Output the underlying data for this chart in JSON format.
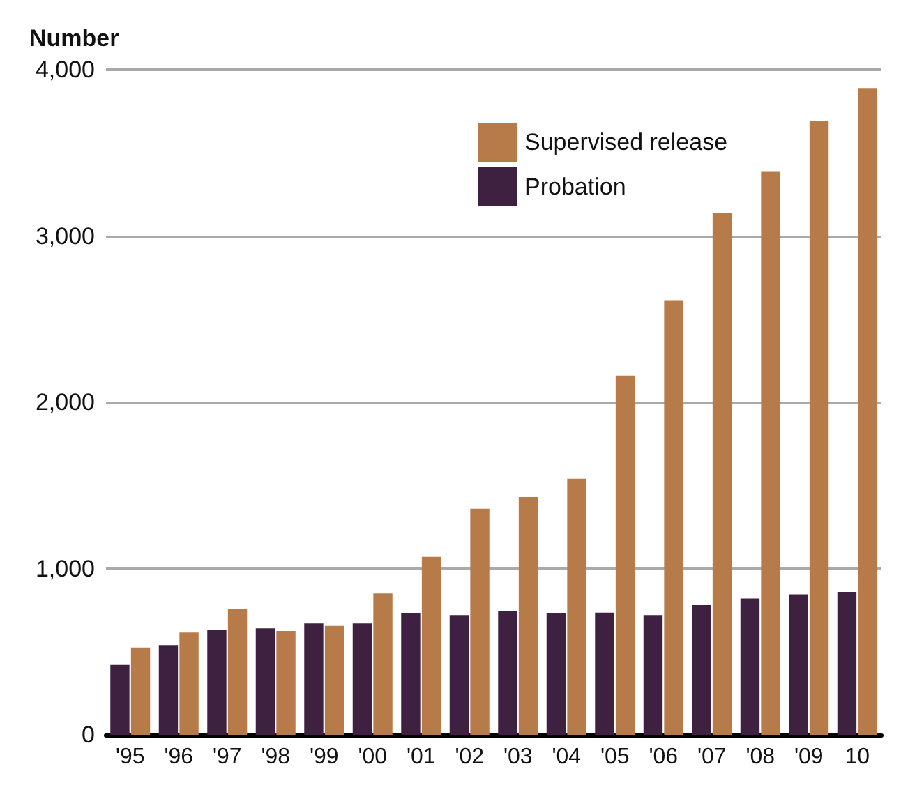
{
  "chart_data": {
    "type": "bar",
    "ylabel": "Number",
    "categories": [
      "'95",
      "'96",
      "'97",
      "'98",
      "'99",
      "'00",
      "'01",
      "'02",
      "'03",
      "'04",
      "'05",
      "'06",
      "'07",
      "'08",
      "'09",
      "10"
    ],
    "series": [
      {
        "name": "Probation",
        "color": "#3e2140",
        "values": [
          420,
          540,
          630,
          640,
          670,
          670,
          730,
          720,
          745,
          730,
          735,
          720,
          780,
          820,
          845,
          860
        ]
      },
      {
        "name": "Supervised release",
        "color": "#b77b4a",
        "values": [
          525,
          615,
          755,
          625,
          655,
          850,
          1070,
          1360,
          1430,
          1540,
          2160,
          2610,
          3140,
          3390,
          3690,
          3890
        ]
      }
    ],
    "ylim": [
      0,
      4000
    ],
    "yticks": [
      {
        "value": 0,
        "label": "0"
      },
      {
        "value": 1000,
        "label": "1,000"
      },
      {
        "value": 2000,
        "label": "2,000"
      },
      {
        "value": 3000,
        "label": "3,000"
      },
      {
        "value": 4000,
        "label": "4,000"
      }
    ],
    "grid": "y",
    "legend": "top right"
  }
}
